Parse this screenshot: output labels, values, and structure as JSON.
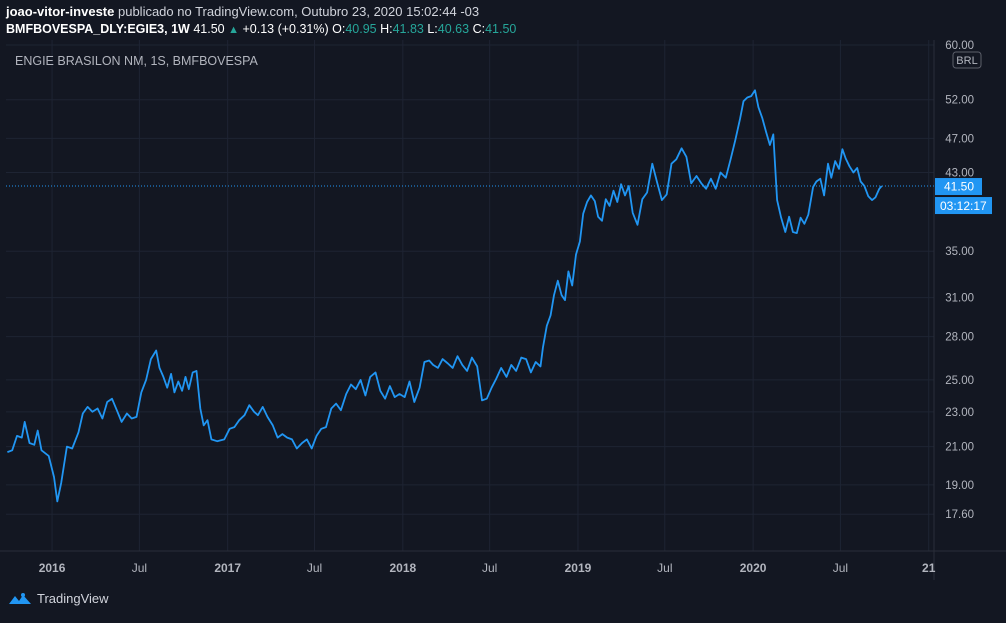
{
  "header": {
    "author": "joao-vitor-investe",
    "published_text": "publicado no TradingView.com, Outubro 23, 2020 15:02:44 -03",
    "symbol": "BMFBOVESPA_DLY:EGIE3, 1W",
    "last": "41.50",
    "change": "+0.13 (+0.31%)",
    "o_label": "O:",
    "o_value": "40.95",
    "h_label": "H:",
    "h_value": "41.83",
    "l_label": "L:",
    "l_value": "40.63",
    "c_label": "C:",
    "c_value": "41.50"
  },
  "footer": {
    "brand": "TradingView"
  },
  "colors": {
    "background": "#131722",
    "line": "#2196f3",
    "grid": "#1e2433",
    "up": "#26a69a",
    "text": "#d1d4dc"
  },
  "chart_data": {
    "type": "line",
    "title": "ENGIE BRASILON NM, 1S, BMFBOVESPA",
    "currency": "BRL",
    "scale": "log",
    "ylim": [
      16.8,
      60.0
    ],
    "y_ticks": [
      "60.00",
      "52.00",
      "47.00",
      "43.00",
      "35.00",
      "31.00",
      "28.00",
      "25.00",
      "23.00",
      "21.00",
      "19.00",
      "17.60"
    ],
    "x_ticks": [
      {
        "label": "2016",
        "x": "2016-01-01"
      },
      {
        "label": "Jul",
        "x": "2016-07-01"
      },
      {
        "label": "2017",
        "x": "2017-01-01"
      },
      {
        "label": "Jul",
        "x": "2017-07-01"
      },
      {
        "label": "2018",
        "x": "2018-01-01"
      },
      {
        "label": "Jul",
        "x": "2018-07-01"
      },
      {
        "label": "2019",
        "x": "2019-01-01"
      },
      {
        "label": "Jul",
        "x": "2019-07-01"
      },
      {
        "label": "2020",
        "x": "2020-01-01"
      },
      {
        "label": "Jul",
        "x": "2020-07-01"
      },
      {
        "label": "21",
        "x": "2021-01-01"
      }
    ],
    "x_range": [
      "2015-09-27",
      "2021-01-12"
    ],
    "last_price_label": "41.50",
    "countdown_label": "03:12:17",
    "series": [
      {
        "points": [
          [
            "2015-09-30",
            20.7
          ],
          [
            "2015-10-10",
            20.8
          ],
          [
            "2015-10-20",
            21.6
          ],
          [
            "2015-10-30",
            21.5
          ],
          [
            "2015-11-05",
            22.4
          ],
          [
            "2015-11-15",
            21.2
          ],
          [
            "2015-11-25",
            21.1
          ],
          [
            "2015-12-02",
            21.9
          ],
          [
            "2015-12-10",
            20.8
          ],
          [
            "2015-12-25",
            20.5
          ],
          [
            "2016-01-05",
            19.4
          ],
          [
            "2016-01-12",
            18.2
          ],
          [
            "2016-01-20",
            19.1
          ],
          [
            "2016-02-01",
            21.0
          ],
          [
            "2016-02-12",
            20.9
          ],
          [
            "2016-02-25",
            21.8
          ],
          [
            "2016-03-05",
            22.9
          ],
          [
            "2016-03-15",
            23.3
          ],
          [
            "2016-03-25",
            23.0
          ],
          [
            "2016-04-05",
            23.2
          ],
          [
            "2016-04-15",
            22.6
          ],
          [
            "2016-04-25",
            23.6
          ],
          [
            "2016-05-05",
            23.8
          ],
          [
            "2016-05-15",
            23.1
          ],
          [
            "2016-05-25",
            22.4
          ],
          [
            "2016-06-05",
            22.9
          ],
          [
            "2016-06-15",
            22.6
          ],
          [
            "2016-06-25",
            22.7
          ],
          [
            "2016-07-05",
            24.2
          ],
          [
            "2016-07-15",
            25.0
          ],
          [
            "2016-07-25",
            26.4
          ],
          [
            "2016-08-05",
            27.0
          ],
          [
            "2016-08-12",
            25.8
          ],
          [
            "2016-08-20",
            25.2
          ],
          [
            "2016-08-28",
            24.5
          ],
          [
            "2016-09-05",
            25.4
          ],
          [
            "2016-09-12",
            24.2
          ],
          [
            "2016-09-20",
            24.9
          ],
          [
            "2016-09-28",
            24.3
          ],
          [
            "2016-10-05",
            25.2
          ],
          [
            "2016-10-12",
            24.4
          ],
          [
            "2016-10-20",
            25.5
          ],
          [
            "2016-10-28",
            25.6
          ],
          [
            "2016-11-05",
            23.2
          ],
          [
            "2016-11-12",
            22.2
          ],
          [
            "2016-11-20",
            22.5
          ],
          [
            "2016-11-28",
            21.4
          ],
          [
            "2016-12-10",
            21.3
          ],
          [
            "2016-12-25",
            21.4
          ],
          [
            "2017-01-05",
            22.0
          ],
          [
            "2017-01-15",
            22.1
          ],
          [
            "2017-01-25",
            22.5
          ],
          [
            "2017-02-05",
            22.8
          ],
          [
            "2017-02-15",
            23.4
          ],
          [
            "2017-02-25",
            23.0
          ],
          [
            "2017-03-05",
            22.8
          ],
          [
            "2017-03-15",
            23.3
          ],
          [
            "2017-03-25",
            22.7
          ],
          [
            "2017-04-05",
            22.2
          ],
          [
            "2017-04-15",
            21.5
          ],
          [
            "2017-04-25",
            21.7
          ],
          [
            "2017-05-05",
            21.5
          ],
          [
            "2017-05-15",
            21.4
          ],
          [
            "2017-05-25",
            20.9
          ],
          [
            "2017-06-05",
            21.2
          ],
          [
            "2017-06-15",
            21.4
          ],
          [
            "2017-06-25",
            20.9
          ],
          [
            "2017-07-05",
            21.6
          ],
          [
            "2017-07-15",
            22.0
          ],
          [
            "2017-07-25",
            22.1
          ],
          [
            "2017-08-05",
            23.2
          ],
          [
            "2017-08-15",
            23.5
          ],
          [
            "2017-08-25",
            23.1
          ],
          [
            "2017-09-05",
            24.1
          ],
          [
            "2017-09-15",
            24.7
          ],
          [
            "2017-09-25",
            24.4
          ],
          [
            "2017-10-05",
            25.0
          ],
          [
            "2017-10-15",
            24.0
          ],
          [
            "2017-10-25",
            25.2
          ],
          [
            "2017-11-05",
            25.5
          ],
          [
            "2017-11-15",
            24.3
          ],
          [
            "2017-11-25",
            23.8
          ],
          [
            "2017-12-05",
            24.6
          ],
          [
            "2017-12-15",
            23.9
          ],
          [
            "2017-12-25",
            24.1
          ],
          [
            "2018-01-05",
            23.9
          ],
          [
            "2018-01-15",
            24.9
          ],
          [
            "2018-01-25",
            23.6
          ],
          [
            "2018-02-05",
            24.5
          ],
          [
            "2018-02-15",
            26.2
          ],
          [
            "2018-02-25",
            26.3
          ],
          [
            "2018-03-05",
            26.0
          ],
          [
            "2018-03-15",
            25.8
          ],
          [
            "2018-03-25",
            26.4
          ],
          [
            "2018-04-05",
            26.1
          ],
          [
            "2018-04-15",
            25.8
          ],
          [
            "2018-04-25",
            26.6
          ],
          [
            "2018-05-05",
            26.0
          ],
          [
            "2018-05-15",
            25.6
          ],
          [
            "2018-05-25",
            26.5
          ],
          [
            "2018-06-05",
            25.9
          ],
          [
            "2018-06-15",
            23.7
          ],
          [
            "2018-06-25",
            23.8
          ],
          [
            "2018-07-05",
            24.5
          ],
          [
            "2018-07-15",
            25.1
          ],
          [
            "2018-07-25",
            25.8
          ],
          [
            "2018-08-05",
            25.2
          ],
          [
            "2018-08-15",
            26.0
          ],
          [
            "2018-08-25",
            25.6
          ],
          [
            "2018-09-05",
            26.5
          ],
          [
            "2018-09-15",
            26.4
          ],
          [
            "2018-09-25",
            25.5
          ],
          [
            "2018-10-05",
            26.2
          ],
          [
            "2018-10-15",
            25.9
          ],
          [
            "2018-10-20",
            27.2
          ],
          [
            "2018-10-28",
            28.8
          ],
          [
            "2018-11-05",
            29.6
          ],
          [
            "2018-11-12",
            31.2
          ],
          [
            "2018-11-20",
            32.4
          ],
          [
            "2018-11-28",
            31.2
          ],
          [
            "2018-12-05",
            30.8
          ],
          [
            "2018-12-12",
            33.2
          ],
          [
            "2018-12-20",
            32.0
          ],
          [
            "2018-12-28",
            34.7
          ],
          [
            "2019-01-05",
            35.9
          ],
          [
            "2019-01-12",
            38.6
          ],
          [
            "2019-01-20",
            39.8
          ],
          [
            "2019-01-28",
            40.5
          ],
          [
            "2019-02-05",
            39.9
          ],
          [
            "2019-02-12",
            38.3
          ],
          [
            "2019-02-20",
            37.9
          ],
          [
            "2019-02-28",
            40.1
          ],
          [
            "2019-03-08",
            39.4
          ],
          [
            "2019-03-16",
            41.0
          ],
          [
            "2019-03-24",
            39.8
          ],
          [
            "2019-04-01",
            41.7
          ],
          [
            "2019-04-09",
            40.5
          ],
          [
            "2019-04-17",
            41.5
          ],
          [
            "2019-04-25",
            38.7
          ],
          [
            "2019-05-05",
            37.5
          ],
          [
            "2019-05-15",
            40.1
          ],
          [
            "2019-05-25",
            40.8
          ],
          [
            "2019-06-05",
            44.0
          ],
          [
            "2019-06-15",
            41.9
          ],
          [
            "2019-06-25",
            40.0
          ],
          [
            "2019-07-05",
            40.6
          ],
          [
            "2019-07-15",
            44.0
          ],
          [
            "2019-07-25",
            44.5
          ],
          [
            "2019-08-05",
            45.8
          ],
          [
            "2019-08-15",
            44.8
          ],
          [
            "2019-08-25",
            41.8
          ],
          [
            "2019-09-05",
            42.6
          ],
          [
            "2019-09-15",
            41.8
          ],
          [
            "2019-09-25",
            41.2
          ],
          [
            "2019-10-05",
            42.3
          ],
          [
            "2019-10-15",
            41.2
          ],
          [
            "2019-10-25",
            43.0
          ],
          [
            "2019-11-05",
            42.4
          ],
          [
            "2019-11-15",
            44.5
          ],
          [
            "2019-11-25",
            46.8
          ],
          [
            "2019-12-05",
            49.5
          ],
          [
            "2019-12-12",
            51.8
          ],
          [
            "2019-12-20",
            52.3
          ],
          [
            "2019-12-28",
            52.5
          ],
          [
            "2020-01-05",
            53.3
          ],
          [
            "2020-01-12",
            51.0
          ],
          [
            "2020-01-20",
            49.6
          ],
          [
            "2020-01-28",
            47.8
          ],
          [
            "2020-02-05",
            46.2
          ],
          [
            "2020-02-12",
            47.5
          ],
          [
            "2020-02-20",
            40.0
          ],
          [
            "2020-02-28",
            38.3
          ],
          [
            "2020-03-08",
            36.8
          ],
          [
            "2020-03-16",
            38.3
          ],
          [
            "2020-03-24",
            36.8
          ],
          [
            "2020-04-01",
            36.7
          ],
          [
            "2020-04-09",
            38.2
          ],
          [
            "2020-04-17",
            37.6
          ],
          [
            "2020-04-25",
            38.5
          ],
          [
            "2020-05-05",
            41.4
          ],
          [
            "2020-05-12",
            42.0
          ],
          [
            "2020-05-20",
            42.3
          ],
          [
            "2020-05-28",
            40.5
          ],
          [
            "2020-06-05",
            44.0
          ],
          [
            "2020-06-12",
            42.4
          ],
          [
            "2020-06-20",
            44.3
          ],
          [
            "2020-06-28",
            43.4
          ],
          [
            "2020-07-05",
            45.7
          ],
          [
            "2020-07-12",
            44.6
          ],
          [
            "2020-07-20",
            43.7
          ],
          [
            "2020-07-28",
            43.0
          ],
          [
            "2020-08-05",
            43.5
          ],
          [
            "2020-08-12",
            42.0
          ],
          [
            "2020-08-20",
            41.5
          ],
          [
            "2020-08-28",
            40.4
          ],
          [
            "2020-09-05",
            40.0
          ],
          [
            "2020-09-12",
            40.3
          ],
          [
            "2020-09-20",
            41.2
          ],
          [
            "2020-09-25",
            41.5
          ]
        ]
      }
    ]
  }
}
